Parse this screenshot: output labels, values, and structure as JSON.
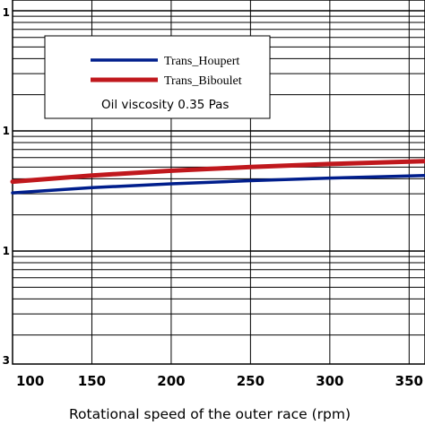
{
  "chart_data": {
    "type": "line",
    "title": "",
    "xlabel": "Rotational speed of the outer race (rpm)",
    "ylabel": "",
    "y_scale": "log",
    "xlim": [
      100,
      360
    ],
    "x_ticks": [
      100,
      150,
      200,
      250,
      300,
      350
    ],
    "x_tick_labels": [
      "100",
      "150",
      "200",
      "250",
      "300",
      "350"
    ],
    "y_tick_labels_visible": [
      "1",
      "1",
      "1",
      "3"
    ],
    "grid": true,
    "legend_position": "top-left",
    "annotation": "Oil viscosity 0.35 Pas",
    "series": [
      {
        "name": "Trans_Houpert",
        "color": "#001e8c",
        "x": [
          100,
          150,
          200,
          250,
          300,
          350,
          360
        ],
        "y": [
          0.305,
          0.337,
          0.363,
          0.385,
          0.405,
          0.422,
          0.425
        ]
      },
      {
        "name": "Trans_Biboulet",
        "color": "#c0181d",
        "x": [
          100,
          150,
          200,
          250,
          300,
          350,
          360
        ],
        "y": [
          0.378,
          0.426,
          0.466,
          0.5,
          0.53,
          0.555,
          0.56
        ]
      }
    ]
  }
}
